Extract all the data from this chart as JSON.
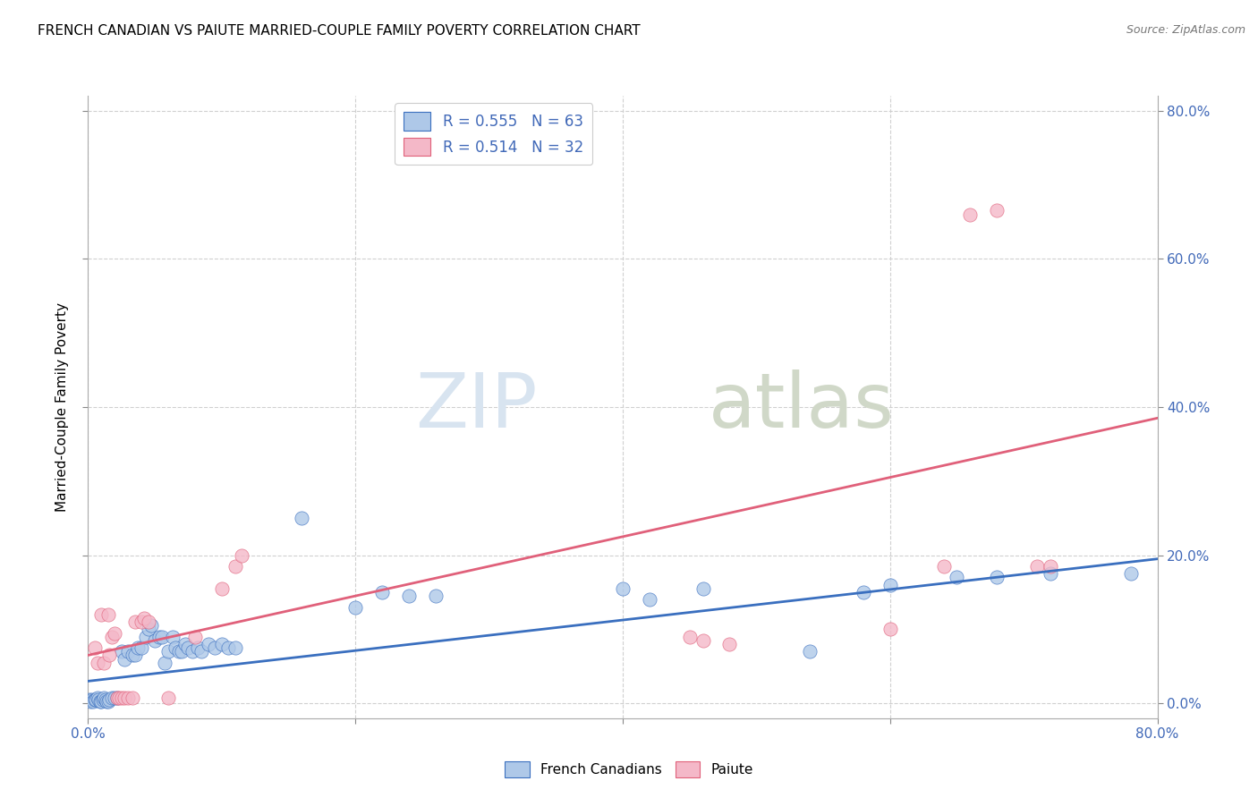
{
  "title": "FRENCH CANADIAN VS PAIUTE MARRIED-COUPLE FAMILY POVERTY CORRELATION CHART",
  "source": "Source: ZipAtlas.com",
  "ylabel_label": "Married-Couple Family Poverty",
  "watermark_zip": "ZIP",
  "watermark_atlas": "atlas",
  "legend_line1": "R = 0.555   N = 63",
  "legend_line2": "R = 0.514   N = 32",
  "blue_color": "#aec8e8",
  "pink_color": "#f4b8c8",
  "blue_line_color": "#3a6fbf",
  "pink_line_color": "#e0607a",
  "axis_tick_color": "#4169b8",
  "grid_color": "#d0d0d0",
  "blue_scatter": [
    [
      0.001,
      0.005
    ],
    [
      0.002,
      0.003
    ],
    [
      0.003,
      0.005
    ],
    [
      0.004,
      0.003
    ],
    [
      0.005,
      0.005
    ],
    [
      0.006,
      0.005
    ],
    [
      0.007,
      0.007
    ],
    [
      0.008,
      0.005
    ],
    [
      0.009,
      0.003
    ],
    [
      0.01,
      0.003
    ],
    [
      0.011,
      0.005
    ],
    [
      0.012,
      0.007
    ],
    [
      0.013,
      0.005
    ],
    [
      0.014,
      0.003
    ],
    [
      0.015,
      0.003
    ],
    [
      0.016,
      0.005
    ],
    [
      0.018,
      0.007
    ],
    [
      0.02,
      0.007
    ],
    [
      0.022,
      0.007
    ],
    [
      0.025,
      0.07
    ],
    [
      0.027,
      0.06
    ],
    [
      0.03,
      0.07
    ],
    [
      0.033,
      0.065
    ],
    [
      0.035,
      0.065
    ],
    [
      0.037,
      0.075
    ],
    [
      0.04,
      0.075
    ],
    [
      0.043,
      0.09
    ],
    [
      0.045,
      0.1
    ],
    [
      0.047,
      0.105
    ],
    [
      0.05,
      0.085
    ],
    [
      0.053,
      0.09
    ],
    [
      0.055,
      0.09
    ],
    [
      0.057,
      0.055
    ],
    [
      0.06,
      0.07
    ],
    [
      0.063,
      0.09
    ],
    [
      0.065,
      0.075
    ],
    [
      0.068,
      0.07
    ],
    [
      0.07,
      0.07
    ],
    [
      0.073,
      0.08
    ],
    [
      0.075,
      0.075
    ],
    [
      0.078,
      0.07
    ],
    [
      0.082,
      0.075
    ],
    [
      0.085,
      0.07
    ],
    [
      0.09,
      0.08
    ],
    [
      0.095,
      0.075
    ],
    [
      0.1,
      0.08
    ],
    [
      0.105,
      0.075
    ],
    [
      0.11,
      0.075
    ],
    [
      0.16,
      0.25
    ],
    [
      0.2,
      0.13
    ],
    [
      0.22,
      0.15
    ],
    [
      0.24,
      0.145
    ],
    [
      0.26,
      0.145
    ],
    [
      0.4,
      0.155
    ],
    [
      0.42,
      0.14
    ],
    [
      0.46,
      0.155
    ],
    [
      0.54,
      0.07
    ],
    [
      0.58,
      0.15
    ],
    [
      0.6,
      0.16
    ],
    [
      0.65,
      0.17
    ],
    [
      0.68,
      0.17
    ],
    [
      0.72,
      0.175
    ],
    [
      0.78,
      0.175
    ]
  ],
  "pink_scatter": [
    [
      0.005,
      0.075
    ],
    [
      0.007,
      0.055
    ],
    [
      0.01,
      0.12
    ],
    [
      0.012,
      0.055
    ],
    [
      0.015,
      0.12
    ],
    [
      0.016,
      0.065
    ],
    [
      0.018,
      0.09
    ],
    [
      0.02,
      0.095
    ],
    [
      0.022,
      0.008
    ],
    [
      0.023,
      0.008
    ],
    [
      0.025,
      0.008
    ],
    [
      0.027,
      0.008
    ],
    [
      0.03,
      0.008
    ],
    [
      0.033,
      0.008
    ],
    [
      0.035,
      0.11
    ],
    [
      0.04,
      0.11
    ],
    [
      0.042,
      0.115
    ],
    [
      0.045,
      0.11
    ],
    [
      0.06,
      0.008
    ],
    [
      0.08,
      0.09
    ],
    [
      0.1,
      0.155
    ],
    [
      0.11,
      0.185
    ],
    [
      0.115,
      0.2
    ],
    [
      0.45,
      0.09
    ],
    [
      0.46,
      0.085
    ],
    [
      0.48,
      0.08
    ],
    [
      0.6,
      0.1
    ],
    [
      0.64,
      0.185
    ],
    [
      0.66,
      0.66
    ],
    [
      0.68,
      0.665
    ],
    [
      0.71,
      0.185
    ],
    [
      0.72,
      0.185
    ]
  ],
  "xlim": [
    0.0,
    0.8
  ],
  "ylim": [
    -0.02,
    0.82
  ],
  "x_ticks": [
    0.0,
    0.2,
    0.4,
    0.6,
    0.8
  ],
  "y_ticks": [
    0.0,
    0.2,
    0.4,
    0.6,
    0.8
  ],
  "blue_trend_x0": 0.0,
  "blue_trend_x1": 0.8,
  "blue_trend_y0": 0.03,
  "blue_trend_y1": 0.195,
  "pink_trend_x0": 0.0,
  "pink_trend_x1": 0.8,
  "pink_trend_y0": 0.065,
  "pink_trend_y1": 0.385
}
